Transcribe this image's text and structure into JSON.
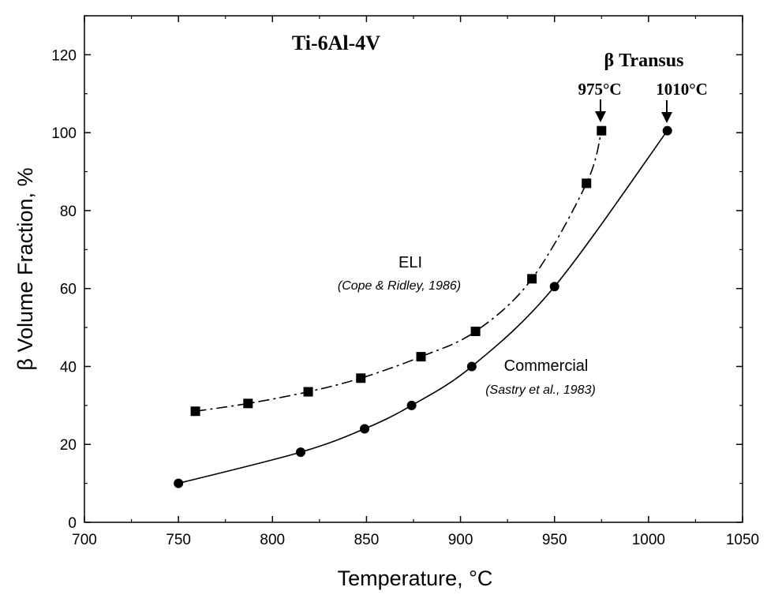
{
  "chart_data": {
    "type": "line",
    "title": "Ti-6Al-4V",
    "xlabel": "Temperature, °C",
    "ylabel": "β Volume Fraction, %",
    "xlim": [
      700,
      1050
    ],
    "ylim": [
      0,
      130
    ],
    "x_ticks": [
      700,
      750,
      800,
      850,
      900,
      950,
      1000,
      1050
    ],
    "y_ticks": [
      0,
      20,
      40,
      60,
      80,
      100,
      120
    ],
    "grid": false,
    "series": [
      {
        "name": "ELI",
        "marker": "square",
        "line_style": "dash-dot",
        "x": [
          759,
          787,
          819,
          847,
          879,
          908,
          938,
          967,
          975
        ],
        "y": [
          28.5,
          30.5,
          33.5,
          37,
          42.5,
          49,
          62.5,
          87,
          100.5
        ]
      },
      {
        "name": "Commercial",
        "marker": "circle",
        "line_style": "solid",
        "x": [
          750,
          815,
          849,
          874,
          906,
          950,
          1010
        ],
        "y": [
          10,
          18,
          24,
          30,
          40,
          60.5,
          100.5
        ]
      }
    ],
    "annotations": {
      "transus_label": "β Transus",
      "eli_transus": "975°C",
      "commercial_transus": "1010°C",
      "eli_label": "ELI",
      "eli_ref": "(Cope & Ridley, 1986)",
      "commercial_label": "Commercial",
      "commercial_ref": "(Sastry et al., 1983)"
    }
  }
}
